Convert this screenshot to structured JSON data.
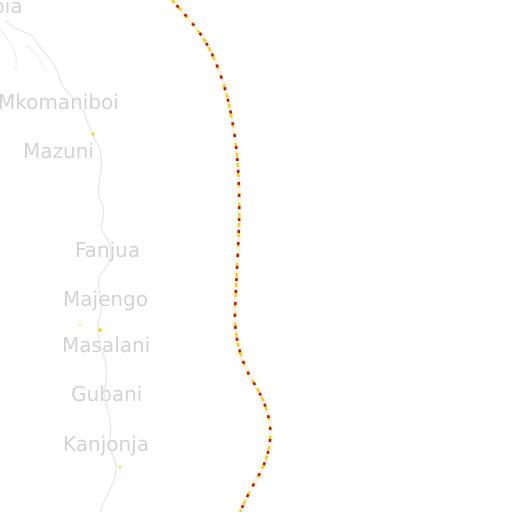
{
  "map": {
    "places": [
      {
        "id": "pia",
        "name": "pia"
      },
      {
        "id": "mkomaniboi",
        "name": "Mkomaniboi"
      },
      {
        "id": "mazuni",
        "name": "Mazuni"
      },
      {
        "id": "fanjua",
        "name": "Fanjua"
      },
      {
        "id": "majengo",
        "name": "Majengo"
      },
      {
        "id": "masalani",
        "name": "Masalani"
      },
      {
        "id": "gubani",
        "name": "Gubani"
      },
      {
        "id": "kanjonja",
        "name": "Kanjonja"
      }
    ],
    "colors": {
      "background": "#ffffff",
      "label": "#d3d3d3",
      "river": "#e6e6e6",
      "route_primary": "#cc1100",
      "route_secondary": "#ffd000"
    }
  }
}
